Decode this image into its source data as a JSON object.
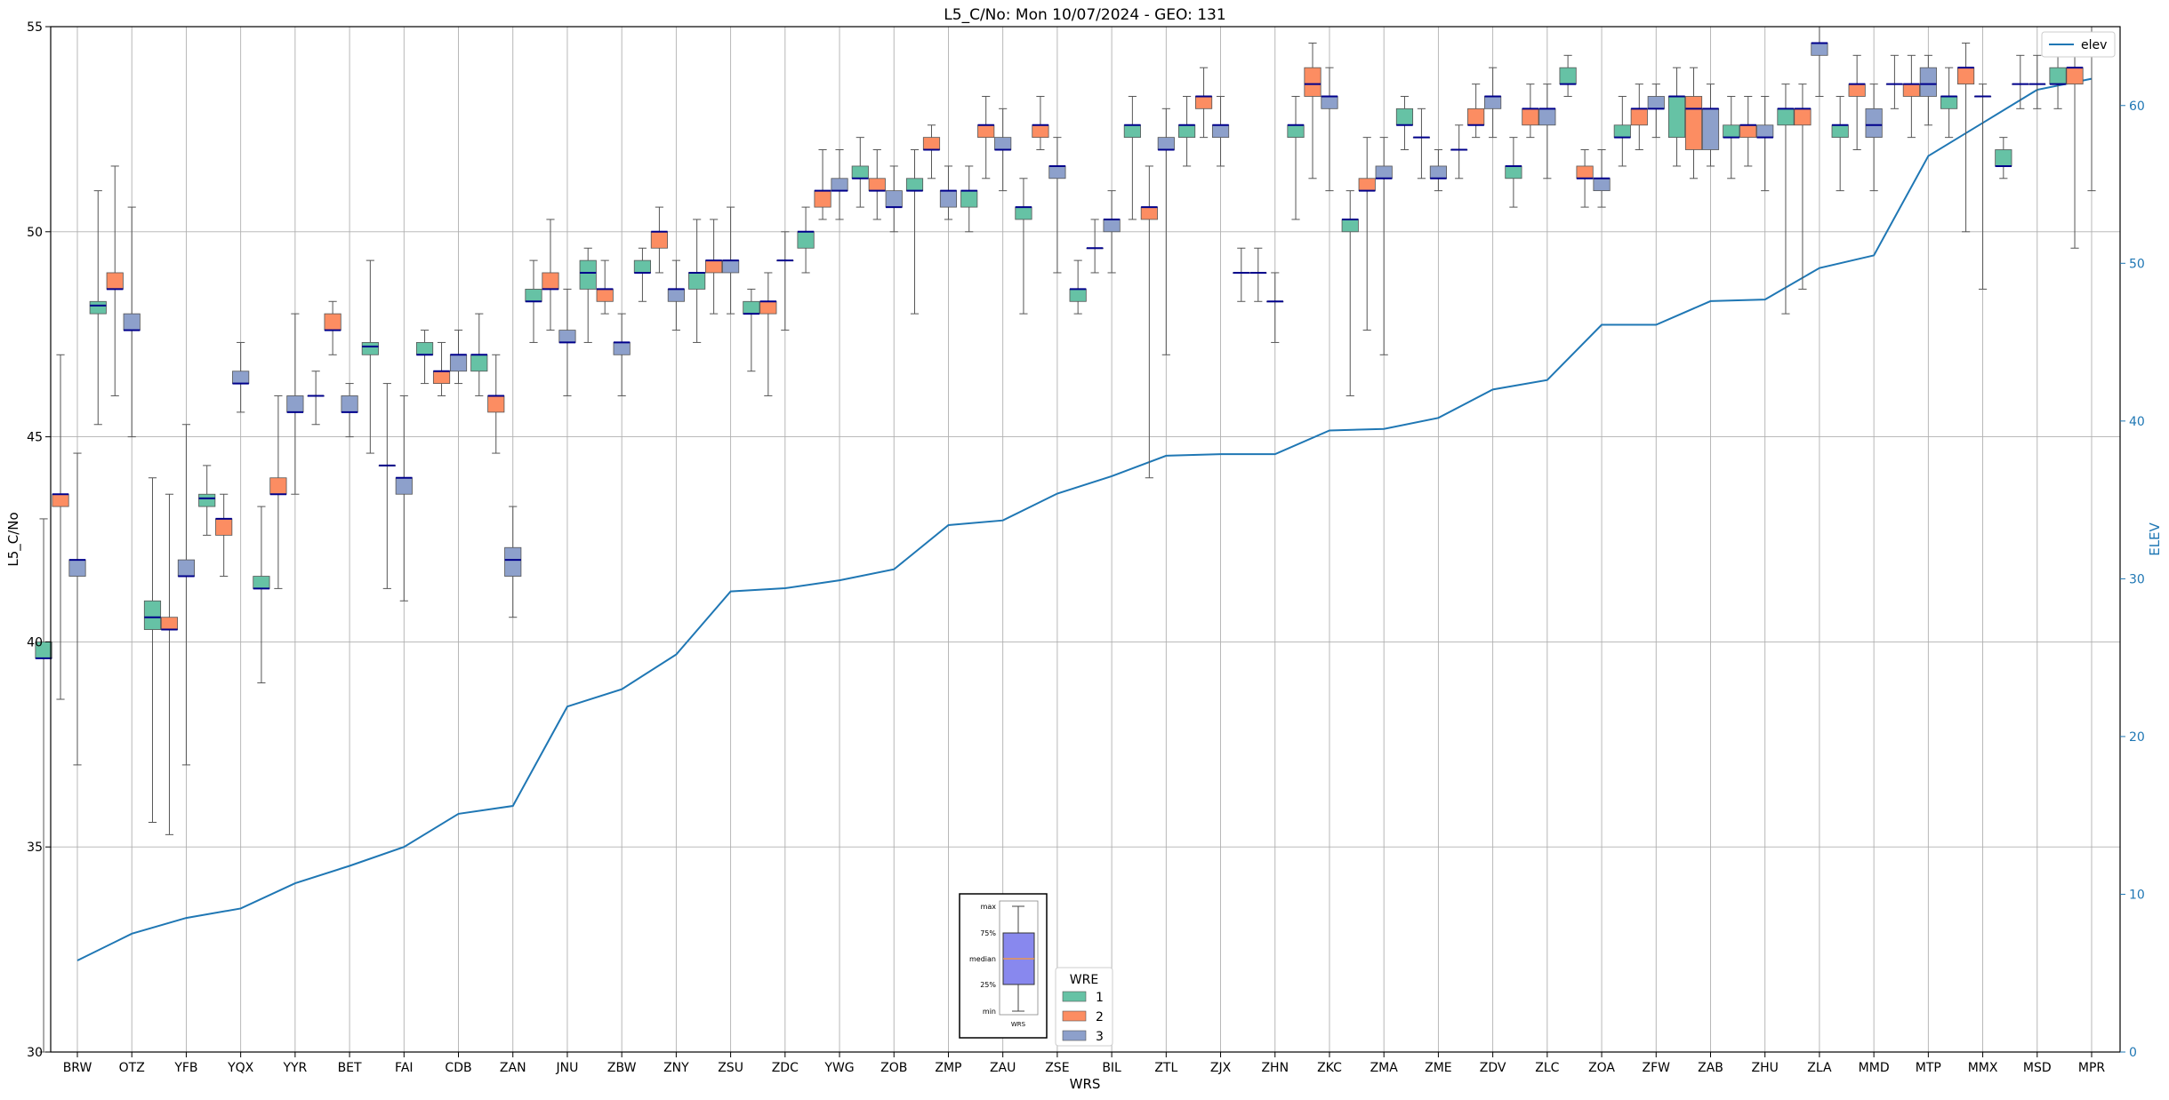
{
  "chart_data": {
    "type": "box",
    "title": "L5_C/No: Mon 10/07/2024 - GEO: 131",
    "xlabel": "WRS",
    "ylabel": "L5_C/No",
    "y2label": "ELEV",
    "ylim": [
      30,
      55
    ],
    "y2lim": [
      0,
      65
    ],
    "yticks": [
      "30",
      "35",
      "40",
      "45",
      "50",
      "55"
    ],
    "y2ticks": [
      "0",
      "10",
      "20",
      "30",
      "40",
      "50",
      "60"
    ],
    "grid": true,
    "categories": [
      "BRW",
      "OTZ",
      "YFB",
      "YQX",
      "YYR",
      "BET",
      "FAI",
      "CDB",
      "ZAN",
      "JNU",
      "ZBW",
      "ZNY",
      "ZSU",
      "ZDC",
      "YWG",
      "ZOB",
      "ZMP",
      "ZAU",
      "ZSE",
      "BIL",
      "ZTL",
      "ZJX",
      "ZHN",
      "ZKC",
      "ZMA",
      "ZME",
      "ZDV",
      "ZLC",
      "ZOA",
      "ZFW",
      "ZAB",
      "ZHU",
      "ZLA",
      "MMD",
      "MTP",
      "MMX",
      "MSD",
      "MPR"
    ],
    "box_legend": {
      "title": "WRE",
      "entries": [
        {
          "label": "1",
          "color": "#66c2a5"
        },
        {
          "label": "2",
          "color": "#fc8d62"
        },
        {
          "label": "3",
          "color": "#8da0cb"
        }
      ]
    },
    "line_legend": {
      "label": "elev",
      "color": "#1f77b4",
      "placement": "upper right"
    },
    "median_color": "#00008b",
    "inset_legend": {
      "labels": [
        "max",
        "75%",
        "median",
        "25%",
        "min"
      ],
      "xlabel": "WRS",
      "box_color": "#8888ee"
    },
    "series": [
      {
        "name": "1",
        "color": "#66c2a5",
        "boxes": [
          {
            "min": 30.0,
            "q1": 39.6,
            "median": 39.6,
            "q3": 40.0,
            "max": 43.0
          },
          {
            "min": 45.3,
            "q1": 48.0,
            "median": 48.2,
            "q3": 48.3,
            "max": 51.0
          },
          {
            "min": 35.6,
            "q1": 40.3,
            "median": 40.6,
            "q3": 41.0,
            "max": 44.0
          },
          {
            "min": 42.6,
            "q1": 43.3,
            "median": 43.5,
            "q3": 43.6,
            "max": 44.3
          },
          {
            "min": 39.0,
            "q1": 41.3,
            "median": 41.3,
            "q3": 41.6,
            "max": 43.3
          },
          {
            "min": 45.3,
            "q1": 46.0,
            "median": 46.0,
            "q3": 46.0,
            "max": 46.6
          },
          {
            "min": 44.6,
            "q1": 47.0,
            "median": 47.2,
            "q3": 47.3,
            "max": 49.3
          },
          {
            "min": 46.3,
            "q1": 47.0,
            "median": 47.0,
            "q3": 47.3,
            "max": 47.6
          },
          {
            "min": 46.0,
            "q1": 46.6,
            "median": 47.0,
            "q3": 47.0,
            "max": 48.0
          },
          {
            "min": 47.3,
            "q1": 48.3,
            "median": 48.3,
            "q3": 48.6,
            "max": 49.3
          },
          {
            "min": 47.3,
            "q1": 48.6,
            "median": 49.0,
            "q3": 49.3,
            "max": 49.6
          },
          {
            "min": 48.3,
            "q1": 49.0,
            "median": 49.0,
            "q3": 49.3,
            "max": 49.6
          },
          {
            "min": 47.3,
            "q1": 48.6,
            "median": 49.0,
            "q3": 49.0,
            "max": 50.3
          },
          {
            "min": 46.6,
            "q1": 48.0,
            "median": 48.0,
            "q3": 48.3,
            "max": 48.6
          },
          {
            "min": 49.0,
            "q1": 49.6,
            "median": 50.0,
            "q3": 50.0,
            "max": 50.6
          },
          {
            "min": 50.6,
            "q1": 51.3,
            "median": 51.3,
            "q3": 51.6,
            "max": 52.3
          },
          {
            "min": 48.0,
            "q1": 51.0,
            "median": 51.0,
            "q3": 51.3,
            "max": 52.0
          },
          {
            "min": 50.0,
            "q1": 50.6,
            "median": 51.0,
            "q3": 51.0,
            "max": 51.6
          },
          {
            "min": 48.0,
            "q1": 50.3,
            "median": 50.6,
            "q3": 50.6,
            "max": 51.3
          },
          {
            "min": 48.0,
            "q1": 48.3,
            "median": 48.6,
            "q3": 48.6,
            "max": 49.3
          },
          {
            "min": 50.3,
            "q1": 52.3,
            "median": 52.6,
            "q3": 52.6,
            "max": 53.3
          },
          {
            "min": 51.6,
            "q1": 52.3,
            "median": 52.6,
            "q3": 52.6,
            "max": 53.3
          },
          {
            "min": 48.3,
            "q1": 49.0,
            "median": 49.0,
            "q3": 49.0,
            "max": 49.6
          },
          {
            "min": 50.3,
            "q1": 52.3,
            "median": 52.6,
            "q3": 52.6,
            "max": 53.3
          },
          {
            "min": 46.0,
            "q1": 50.0,
            "median": 50.3,
            "q3": 50.3,
            "max": 51.0
          },
          {
            "min": 52.0,
            "q1": 52.6,
            "median": 52.6,
            "q3": 53.0,
            "max": 53.3
          },
          {
            "min": 51.3,
            "q1": 52.0,
            "median": 52.0,
            "q3": 52.0,
            "max": 52.6
          },
          {
            "min": 50.6,
            "q1": 51.3,
            "median": 51.6,
            "q3": 51.6,
            "max": 52.3
          },
          {
            "min": 53.3,
            "q1": 53.6,
            "median": 53.6,
            "q3": 54.0,
            "max": 54.3
          },
          {
            "min": 51.6,
            "q1": 52.3,
            "median": 52.3,
            "q3": 52.6,
            "max": 53.3
          },
          {
            "min": 51.6,
            "q1": 52.3,
            "median": 53.3,
            "q3": 53.3,
            "max": 54.0
          },
          {
            "min": 51.3,
            "q1": 52.3,
            "median": 52.3,
            "q3": 52.6,
            "max": 53.3
          },
          {
            "min": 48.0,
            "q1": 52.6,
            "median": 53.0,
            "q3": 53.0,
            "max": 53.6
          },
          {
            "min": 51.0,
            "q1": 52.3,
            "median": 52.6,
            "q3": 52.6,
            "max": 53.3
          },
          {
            "min": 53.0,
            "q1": 53.6,
            "median": 53.6,
            "q3": 53.6,
            "max": 54.3
          },
          {
            "min": 52.3,
            "q1": 53.0,
            "median": 53.3,
            "q3": 53.3,
            "max": 54.0
          },
          {
            "min": 51.3,
            "q1": 51.6,
            "median": 51.6,
            "q3": 52.0,
            "max": 52.3
          },
          {
            "min": 53.0,
            "q1": 53.6,
            "median": 53.6,
            "q3": 54.0,
            "max": 54.3
          }
        ]
      },
      {
        "name": "2",
        "color": "#fc8d62",
        "boxes": [
          {
            "min": 38.6,
            "q1": 43.3,
            "median": 43.6,
            "q3": 43.6,
            "max": 47.0
          },
          {
            "min": 46.0,
            "q1": 48.6,
            "median": 48.6,
            "q3": 49.0,
            "max": 51.6
          },
          {
            "min": 35.3,
            "q1": 40.3,
            "median": 40.3,
            "q3": 40.6,
            "max": 43.6
          },
          {
            "min": 41.6,
            "q1": 42.6,
            "median": 43.0,
            "q3": 43.0,
            "max": 43.6
          },
          {
            "min": 41.3,
            "q1": 43.6,
            "median": 43.6,
            "q3": 44.0,
            "max": 46.0
          },
          {
            "min": 47.0,
            "q1": 47.6,
            "median": 47.6,
            "q3": 48.0,
            "max": 48.3
          },
          {
            "min": 41.3,
            "q1": 44.3,
            "median": 44.3,
            "q3": 44.3,
            "max": 46.3
          },
          {
            "min": 46.0,
            "q1": 46.3,
            "median": 46.6,
            "q3": 46.6,
            "max": 47.3
          },
          {
            "min": 44.6,
            "q1": 45.6,
            "median": 46.0,
            "q3": 46.0,
            "max": 47.0
          },
          {
            "min": 47.6,
            "q1": 48.6,
            "median": 48.6,
            "q3": 49.0,
            "max": 50.3
          },
          {
            "min": 48.0,
            "q1": 48.3,
            "median": 48.6,
            "q3": 48.6,
            "max": 49.3
          },
          {
            "min": 49.0,
            "q1": 49.6,
            "median": 50.0,
            "q3": 50.0,
            "max": 50.6
          },
          {
            "min": 48.0,
            "q1": 49.0,
            "median": 49.3,
            "q3": 49.3,
            "max": 50.3
          },
          {
            "min": 46.0,
            "q1": 48.0,
            "median": 48.3,
            "q3": 48.3,
            "max": 49.0
          },
          {
            "min": 50.3,
            "q1": 50.6,
            "median": 51.0,
            "q3": 51.0,
            "max": 52.0
          },
          {
            "min": 50.3,
            "q1": 51.0,
            "median": 51.0,
            "q3": 51.3,
            "max": 52.0
          },
          {
            "min": 51.3,
            "q1": 52.0,
            "median": 52.0,
            "q3": 52.3,
            "max": 52.6
          },
          {
            "min": 51.3,
            "q1": 52.3,
            "median": 52.6,
            "q3": 52.6,
            "max": 53.3
          },
          {
            "min": 52.0,
            "q1": 52.3,
            "median": 52.6,
            "q3": 52.6,
            "max": 53.3
          },
          {
            "min": 49.0,
            "q1": 49.6,
            "median": 49.6,
            "q3": 49.6,
            "max": 50.3
          },
          {
            "min": 44.0,
            "q1": 50.3,
            "median": 50.6,
            "q3": 50.6,
            "max": 51.6
          },
          {
            "min": 52.3,
            "q1": 53.0,
            "median": 53.3,
            "q3": 53.3,
            "max": 54.0
          },
          {
            "min": 48.3,
            "q1": 49.0,
            "median": 49.0,
            "q3": 49.0,
            "max": 49.6
          },
          {
            "min": 51.3,
            "q1": 53.3,
            "median": 53.6,
            "q3": 54.0,
            "max": 54.6
          },
          {
            "min": 47.6,
            "q1": 51.0,
            "median": 51.0,
            "q3": 51.3,
            "max": 52.3
          },
          {
            "min": 51.3,
            "q1": 52.3,
            "median": 52.3,
            "q3": 52.3,
            "max": 53.0
          },
          {
            "min": 52.3,
            "q1": 52.6,
            "median": 52.6,
            "q3": 53.0,
            "max": 53.6
          },
          {
            "min": 52.3,
            "q1": 52.6,
            "median": 53.0,
            "q3": 53.0,
            "max": 53.6
          },
          {
            "min": 50.6,
            "q1": 51.3,
            "median": 51.3,
            "q3": 51.6,
            "max": 52.0
          },
          {
            "min": 52.0,
            "q1": 52.6,
            "median": 53.0,
            "q3": 53.0,
            "max": 53.6
          },
          {
            "min": 51.3,
            "q1": 52.0,
            "median": 53.0,
            "q3": 53.3,
            "max": 54.0
          },
          {
            "min": 51.6,
            "q1": 52.3,
            "median": 52.6,
            "q3": 52.6,
            "max": 53.3
          },
          {
            "min": 48.6,
            "q1": 52.6,
            "median": 53.0,
            "q3": 53.0,
            "max": 53.6
          },
          {
            "min": 52.0,
            "q1": 53.3,
            "median": 53.6,
            "q3": 53.6,
            "max": 54.3
          },
          {
            "min": 52.3,
            "q1": 53.3,
            "median": 53.6,
            "q3": 53.6,
            "max": 54.3
          },
          {
            "min": 50.0,
            "q1": 53.6,
            "median": 54.0,
            "q3": 54.0,
            "max": 54.6
          },
          {
            "min": 53.0,
            "q1": 53.6,
            "median": 53.6,
            "q3": 53.6,
            "max": 54.3
          },
          {
            "min": 49.6,
            "q1": 53.6,
            "median": 54.0,
            "q3": 54.0,
            "max": 54.3
          }
        ]
      },
      {
        "name": "3",
        "color": "#8da0cb",
        "boxes": [
          {
            "min": 37.0,
            "q1": 41.6,
            "median": 42.0,
            "q3": 42.0,
            "max": 44.6
          },
          {
            "min": 45.0,
            "q1": 47.6,
            "median": 47.6,
            "q3": 48.0,
            "max": 50.6
          },
          {
            "min": 37.0,
            "q1": 41.6,
            "median": 41.6,
            "q3": 42.0,
            "max": 45.3
          },
          {
            "min": 45.6,
            "q1": 46.3,
            "median": 46.3,
            "q3": 46.6,
            "max": 47.3
          },
          {
            "min": 43.6,
            "q1": 45.6,
            "median": 45.6,
            "q3": 46.0,
            "max": 48.0
          },
          {
            "min": 45.0,
            "q1": 45.6,
            "median": 45.6,
            "q3": 46.0,
            "max": 46.3
          },
          {
            "min": 41.0,
            "q1": 43.6,
            "median": 44.0,
            "q3": 44.0,
            "max": 46.0
          },
          {
            "min": 46.3,
            "q1": 46.6,
            "median": 47.0,
            "q3": 47.0,
            "max": 47.6
          },
          {
            "min": 40.6,
            "q1": 41.6,
            "median": 42.0,
            "q3": 42.3,
            "max": 43.3
          },
          {
            "min": 46.0,
            "q1": 47.3,
            "median": 47.3,
            "q3": 47.6,
            "max": 48.6
          },
          {
            "min": 46.0,
            "q1": 47.0,
            "median": 47.3,
            "q3": 47.3,
            "max": 48.0
          },
          {
            "min": 47.6,
            "q1": 48.3,
            "median": 48.6,
            "q3": 48.6,
            "max": 49.3
          },
          {
            "min": 48.0,
            "q1": 49.0,
            "median": 49.3,
            "q3": 49.3,
            "max": 50.6
          },
          {
            "min": 47.6,
            "q1": 49.3,
            "median": 49.3,
            "q3": 49.3,
            "max": 50.0
          },
          {
            "min": 50.3,
            "q1": 51.0,
            "median": 51.0,
            "q3": 51.3,
            "max": 52.0
          },
          {
            "min": 50.0,
            "q1": 50.6,
            "median": 50.6,
            "q3": 51.0,
            "max": 51.6
          },
          {
            "min": 50.3,
            "q1": 50.6,
            "median": 51.0,
            "q3": 51.0,
            "max": 51.6
          },
          {
            "min": 51.0,
            "q1": 52.0,
            "median": 52.0,
            "q3": 52.3,
            "max": 53.0
          },
          {
            "min": 49.0,
            "q1": 51.3,
            "median": 51.6,
            "q3": 51.6,
            "max": 52.3
          },
          {
            "min": 49.0,
            "q1": 50.0,
            "median": 50.3,
            "q3": 50.3,
            "max": 51.0
          },
          {
            "min": 47.0,
            "q1": 52.0,
            "median": 52.0,
            "q3": 52.3,
            "max": 53.0
          },
          {
            "min": 51.6,
            "q1": 52.3,
            "median": 52.6,
            "q3": 52.6,
            "max": 53.3
          },
          {
            "min": 47.3,
            "q1": 48.3,
            "median": 48.3,
            "q3": 48.3,
            "max": 49.0
          },
          {
            "min": 51.0,
            "q1": 53.0,
            "median": 53.3,
            "q3": 53.3,
            "max": 54.0
          },
          {
            "min": 47.0,
            "q1": 51.3,
            "median": 51.3,
            "q3": 51.6,
            "max": 52.3
          },
          {
            "min": 51.0,
            "q1": 51.3,
            "median": 51.3,
            "q3": 51.6,
            "max": 52.0
          },
          {
            "min": 52.3,
            "q1": 53.0,
            "median": 53.3,
            "q3": 53.3,
            "max": 54.0
          },
          {
            "min": 51.3,
            "q1": 52.6,
            "median": 53.0,
            "q3": 53.0,
            "max": 53.6
          },
          {
            "min": 50.6,
            "q1": 51.0,
            "median": 51.3,
            "q3": 51.3,
            "max": 52.0
          },
          {
            "min": 52.3,
            "q1": 53.0,
            "median": 53.0,
            "q3": 53.3,
            "max": 53.6
          },
          {
            "min": 51.6,
            "q1": 52.0,
            "median": 53.0,
            "q3": 53.0,
            "max": 53.6
          },
          {
            "min": 51.0,
            "q1": 52.3,
            "median": 52.3,
            "q3": 52.6,
            "max": 53.3
          },
          {
            "min": 53.3,
            "q1": 54.3,
            "median": 54.6,
            "q3": 54.6,
            "max": 55.0
          },
          {
            "min": 51.0,
            "q1": 52.3,
            "median": 52.6,
            "q3": 53.0,
            "max": 53.6
          },
          {
            "min": 52.6,
            "q1": 53.3,
            "median": 53.6,
            "q3": 54.0,
            "max": 54.3
          },
          {
            "min": 48.6,
            "q1": 53.3,
            "median": 53.3,
            "q3": 53.3,
            "max": 53.6
          },
          {
            "min": 53.0,
            "q1": 53.6,
            "median": 53.6,
            "q3": 53.6,
            "max": 54.3
          },
          {
            "min": 51.0,
            "q1": 54.3,
            "median": 54.6,
            "q3": 54.6,
            "max": 55.0
          }
        ]
      }
    ],
    "elev": [
      5.8,
      7.5,
      8.5,
      9.1,
      10.7,
      11.8,
      13.0,
      15.1,
      15.6,
      21.9,
      23.0,
      25.2,
      29.2,
      29.4,
      29.9,
      30.6,
      33.4,
      33.7,
      35.4,
      36.5,
      37.8,
      37.9,
      37.9,
      39.4,
      39.5,
      40.2,
      42.0,
      42.6,
      46.1,
      46.1,
      47.6,
      47.7,
      49.7,
      50.5,
      56.8,
      58.9,
      61.0,
      61.7
    ]
  }
}
